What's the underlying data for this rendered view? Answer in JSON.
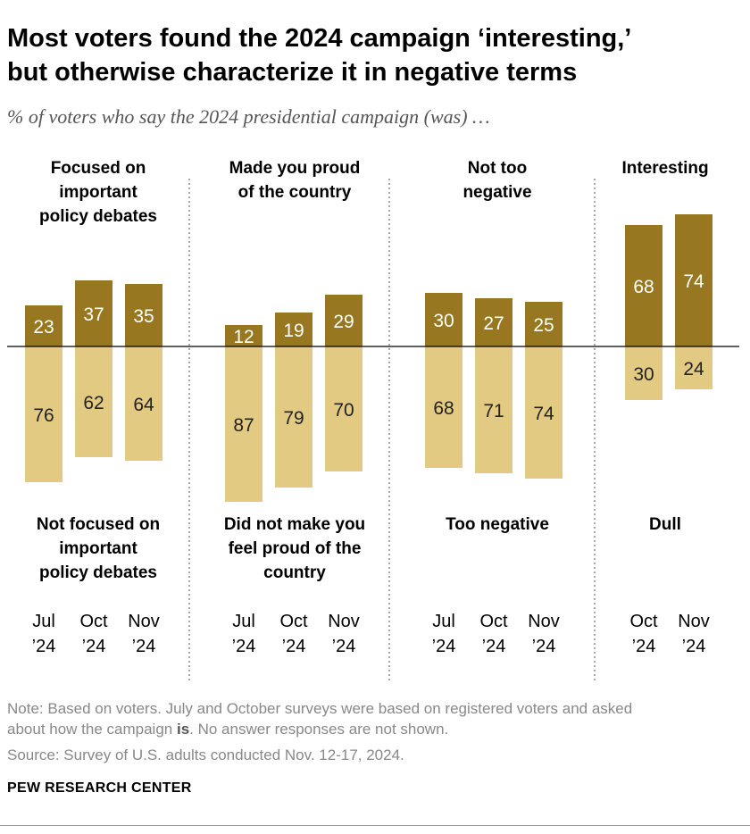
{
  "title_lines": [
    "Most voters found the 2024 campaign ‘interesting,’",
    "but otherwise characterize it in negative terms"
  ],
  "subtitle": "% of voters who say the 2024 presidential campaign (was) …",
  "note": {
    "line1": "Note: Based on voters. July and October surveys were based on registered voters and asked",
    "line2_before": "about how the campaign ",
    "line2_bold": "is",
    "line2_after": ". No answer responses are not shown."
  },
  "source": "Source: Survey of U.S. adults conducted Nov. 12-17, 2024.",
  "brand": "PEW RESEARCH CENTER",
  "colors": {
    "positive": "#977820",
    "negative": "#E3CA82",
    "baseline": "#000000",
    "divider": "#8c8c8c"
  },
  "chart_data": {
    "type": "bar",
    "title": "Most voters found the 2024 campaign ‘interesting,’ but otherwise characterize it in negative terms",
    "groups": [
      {
        "top_label": [
          "Focused on",
          "important",
          "policy debates"
        ],
        "bottom_label": [
          "Not focused on",
          "important",
          "policy debates"
        ],
        "bars": [
          {
            "month": "Jul",
            "year": "’24",
            "positive": 23,
            "negative": 76
          },
          {
            "month": "Oct",
            "year": "’24",
            "positive": 37,
            "negative": 62
          },
          {
            "month": "Nov",
            "year": "’24",
            "positive": 35,
            "negative": 64
          }
        ]
      },
      {
        "top_label": [
          "Made you proud",
          "of the country"
        ],
        "bottom_label": [
          "Did not make you",
          "feel proud of the",
          "country"
        ],
        "bars": [
          {
            "month": "Jul",
            "year": "’24",
            "positive": 12,
            "negative": 87
          },
          {
            "month": "Oct",
            "year": "’24",
            "positive": 19,
            "negative": 79
          },
          {
            "month": "Nov",
            "year": "’24",
            "positive": 29,
            "negative": 70
          }
        ]
      },
      {
        "top_label": [
          "Not too",
          "negative"
        ],
        "bottom_label": [
          "Too negative"
        ],
        "bars": [
          {
            "month": "Jul",
            "year": "’24",
            "positive": 30,
            "negative": 68
          },
          {
            "month": "Oct",
            "year": "’24",
            "positive": 27,
            "negative": 71
          },
          {
            "month": "Nov",
            "year": "’24",
            "positive": 25,
            "negative": 74
          }
        ]
      },
      {
        "top_label": [
          "Interesting"
        ],
        "bottom_label": [
          "Dull"
        ],
        "bars": [
          {
            "month": "Oct",
            "year": "’24",
            "positive": 68,
            "negative": 30
          },
          {
            "month": "Nov",
            "year": "’24",
            "positive": 74,
            "negative": 24
          }
        ]
      }
    ]
  }
}
